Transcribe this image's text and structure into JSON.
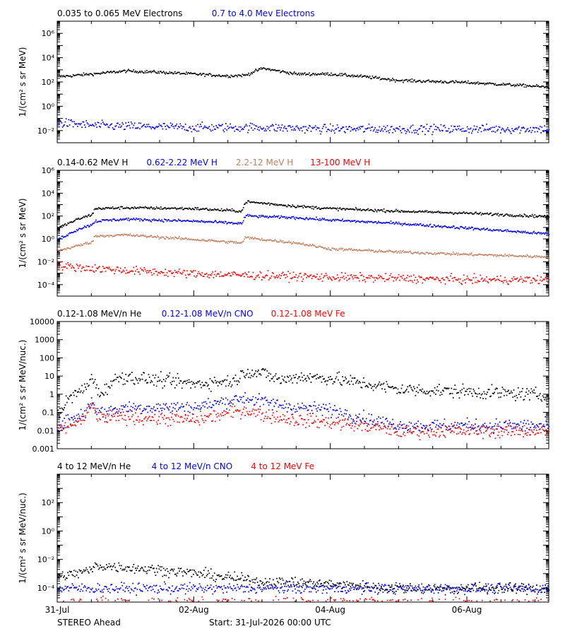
{
  "time_axis": {
    "tick_labels": [
      "31-Jul",
      "02-Aug",
      "04-Aug",
      "06-Aug"
    ],
    "tick_days": [
      0,
      2,
      4,
      6
    ],
    "range_days": [
      0,
      7.2
    ]
  },
  "footer": {
    "spacecraft": "STEREO Ahead",
    "start": "Start: 31-Jul-2026 00:00 UTC"
  },
  "colors": {
    "black": "#000000",
    "blue": "#0000ff",
    "tan": "#c08060",
    "red": "#ff0000"
  },
  "chart_data": [
    {
      "type": "scatter",
      "ylabel": "1/(cm² s sr MeV)",
      "ylog": true,
      "ylim": [
        0.001,
        10000000
      ],
      "ytick_exponents": [
        -2,
        0,
        2,
        4,
        6
      ],
      "ytick_style": "power",
      "legend": [
        {
          "text": "0.035 to 0.065 MeV Electrons",
          "color": "#000000"
        },
        {
          "text": "0.7 to 4.0 Mev Electrons",
          "color": "#0000ff"
        }
      ],
      "series": [
        {
          "name": "0.035 to 0.065 MeV Electrons",
          "color": "#000000",
          "x": [
            0,
            0.5,
            1.0,
            1.5,
            2.0,
            2.5,
            2.75,
            3.0,
            3.5,
            4.0,
            4.5,
            5.0,
            6.0,
            7.0,
            7.2
          ],
          "y": [
            300,
            500,
            900,
            700,
            500,
            350,
            400,
            1500,
            500,
            500,
            300,
            150,
            100,
            50,
            40
          ]
        },
        {
          "name": "0.7 to 4.0 Mev Electrons",
          "color": "#0000ff",
          "x": [
            0,
            0.5,
            1.0,
            2.0,
            3.0,
            4.0,
            5.0,
            6.0,
            7.2
          ],
          "y": [
            0.05,
            0.03,
            0.025,
            0.02,
            0.02,
            0.015,
            0.015,
            0.015,
            0.015
          ]
        }
      ]
    },
    {
      "type": "scatter",
      "ylabel": "1/(cm² s sr MeV)",
      "ylog": true,
      "ylim": [
        1e-05,
        1000000
      ],
      "ytick_exponents": [
        -4,
        -2,
        0,
        2,
        4,
        6
      ],
      "ytick_style": "power",
      "legend": [
        {
          "text": "0.14-0.62 MeV H",
          "color": "#000000"
        },
        {
          "text": "0.62-2.22 MeV H",
          "color": "#0000ff"
        },
        {
          "text": "2.2-12 MeV H",
          "color": "#c08060"
        },
        {
          "text": "13-100 MeV H",
          "color": "#ff0000"
        }
      ],
      "series": [
        {
          "name": "0.14-0.62 MeV H",
          "color": "#000000",
          "x": [
            0,
            0.3,
            0.5,
            0.55,
            1.0,
            2.0,
            2.7,
            2.75,
            3.0,
            3.5,
            4.0,
            5.0,
            6.0,
            7.2
          ],
          "y": [
            10,
            60,
            150,
            500,
            600,
            500,
            300,
            2000,
            1500,
            800,
            500,
            300,
            200,
            100
          ]
        },
        {
          "name": "0.62-2.22 MeV H",
          "color": "#0000ff",
          "x": [
            0,
            0.3,
            0.5,
            0.55,
            1.0,
            2.0,
            2.7,
            2.75,
            3.0,
            3.5,
            4.0,
            5.0,
            6.0,
            7.2
          ],
          "y": [
            1,
            8,
            20,
            40,
            60,
            40,
            25,
            120,
            100,
            80,
            50,
            25,
            10,
            3
          ]
        },
        {
          "name": "2.2-12 MeV H",
          "color": "#c08060",
          "x": [
            0,
            0.5,
            0.55,
            1.0,
            2.0,
            2.7,
            2.75,
            3.0,
            3.5,
            4.0,
            5.0,
            6.0,
            7.2
          ],
          "y": [
            0.1,
            0.6,
            2,
            2.5,
            1,
            0.5,
            1.5,
            1,
            0.5,
            0.15,
            0.08,
            0.05,
            0.03
          ]
        },
        {
          "name": "13-100 MeV H",
          "color": "#ff0000",
          "x": [
            0,
            0.5,
            1.0,
            2.0,
            3.0,
            4.0,
            5.0,
            6.0,
            7.2
          ],
          "y": [
            0.005,
            0.003,
            0.002,
            0.001,
            0.0007,
            0.0005,
            0.0004,
            0.0003,
            0.0003
          ]
        }
      ]
    },
    {
      "type": "scatter",
      "ylabel": "1/(cm² s sr MeV/nuc.)",
      "ylog": true,
      "ylim": [
        0.001,
        10000
      ],
      "ytick_exponents": [
        -3,
        -2,
        -1,
        0,
        1,
        2,
        3,
        4
      ],
      "ytick_style": "decimal",
      "legend": [
        {
          "text": "0.12-1.08 MeV/n He",
          "color": "#000000"
        },
        {
          "text": "0.12-1.08 MeV/n CNO",
          "color": "#0000ff"
        },
        {
          "text": "0.12-1.08 MeV Fe",
          "color": "#ff0000"
        }
      ],
      "series": [
        {
          "name": "0.12-1.08 MeV/n He",
          "color": "#000000",
          "x": [
            0,
            0.2,
            0.45,
            0.5,
            0.6,
            0.9,
            1.2,
            2.0,
            2.6,
            2.75,
            3.0,
            3.3,
            3.5,
            4.0,
            5.0,
            6.0,
            7.0,
            7.2
          ],
          "y": [
            0.1,
            0.8,
            3,
            15,
            1,
            10,
            8,
            4,
            6,
            20,
            15,
            6,
            10,
            8,
            2,
            1.5,
            1,
            0.8
          ]
        },
        {
          "name": "0.12-1.08 MeV/n CNO",
          "color": "#0000ff",
          "x": [
            0,
            0.4,
            0.5,
            0.6,
            1.0,
            2.0,
            2.75,
            3.0,
            3.5,
            4.0,
            4.5,
            5.0,
            6.0,
            7.2
          ],
          "y": [
            0.02,
            0.1,
            0.5,
            0.1,
            0.2,
            0.2,
            0.7,
            0.4,
            0.2,
            0.15,
            0.05,
            0.02,
            0.02,
            0.02
          ]
        },
        {
          "name": "0.12-1.08 MeV Fe",
          "color": "#ff0000",
          "x": [
            0,
            0.4,
            0.5,
            0.6,
            1.0,
            2.0,
            2.75,
            3.0,
            3.5,
            4.0,
            4.5,
            5.0,
            6.0,
            7.2
          ],
          "y": [
            0.01,
            0.05,
            0.3,
            0.05,
            0.06,
            0.04,
            0.15,
            0.08,
            0.04,
            0.03,
            0.02,
            0.01,
            0.01,
            0.01
          ]
        }
      ]
    },
    {
      "type": "scatter",
      "ylabel": "1/(cm² s sr MeV/nuc.)",
      "ylog": true,
      "ylim": [
        1e-05,
        10000
      ],
      "ytick_exponents": [
        -4,
        -2,
        0,
        2
      ],
      "ytick_style": "power",
      "legend": [
        {
          "text": "4 to 12 MeV/n He",
          "color": "#000000"
        },
        {
          "text": "4 to 12 MeV/n CNO",
          "color": "#0000ff"
        },
        {
          "text": "4 to 12 MeV Fe",
          "color": "#ff0000"
        }
      ],
      "series": [
        {
          "name": "4 to 12 MeV/n He",
          "color": "#000000",
          "x": [
            0,
            0.5,
            0.55,
            1.0,
            1.5,
            2.0,
            2.5,
            3.0,
            3.5,
            4.0,
            5.0,
            7.2
          ],
          "y": [
            0.0006,
            0.002,
            0.004,
            0.003,
            0.002,
            0.0012,
            0.0006,
            0.0003,
            0.00025,
            0.0002,
            0.0001,
            0.0001
          ]
        },
        {
          "name": "4 to 12 MeV/n CNO",
          "color": "#0000ff",
          "x": [
            0,
            1.0,
            2.0,
            3.0,
            4.0,
            5.0,
            6.0,
            7.2
          ],
          "y": [
            0.0001,
            0.0001,
            0.0001,
            0.0001,
            0.0001,
            0.0001,
            0.0001,
            0.0001
          ]
        },
        {
          "name": "4 to 12 MeV Fe",
          "color": "#ff0000",
          "x": [
            0,
            2.0,
            4.0,
            7.2
          ],
          "y": [
            1e-05,
            1e-05,
            1e-05,
            1e-05
          ]
        }
      ]
    }
  ]
}
